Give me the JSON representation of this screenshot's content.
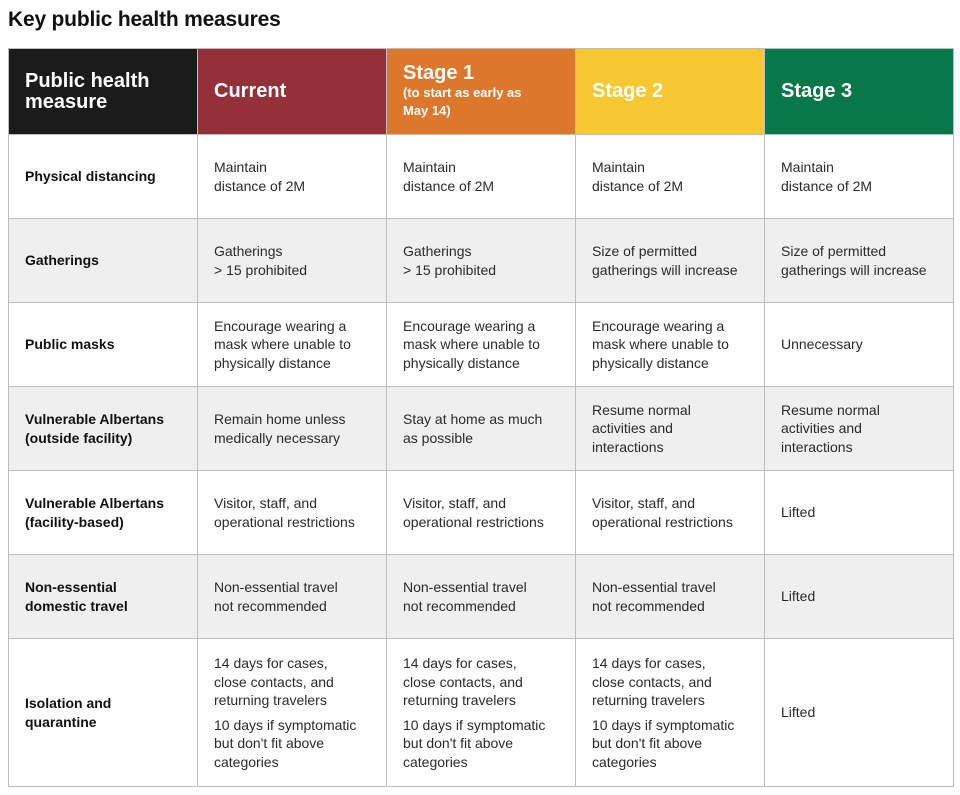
{
  "title": "Key public health measures",
  "header": {
    "measure": [
      "Public health",
      "measure"
    ],
    "current": "Current",
    "stage1": "Stage 1",
    "stage1_note": [
      "(to start as early as",
      "May 14)"
    ],
    "stage2": "Stage 2",
    "stage3": "Stage 3"
  },
  "colors": {
    "measure_header": "#1c1b1b",
    "current": "#93303a",
    "stage1": "#dd772b",
    "stage2": "#f7c832",
    "stage3": "#087849"
  },
  "rows": [
    {
      "label": [
        "Physical distancing"
      ],
      "current": [
        [
          "Maintain",
          "distance of 2M"
        ]
      ],
      "stage1": [
        [
          "Maintain",
          "distance of 2M"
        ]
      ],
      "stage2": [
        [
          "Maintain",
          "distance of 2M"
        ]
      ],
      "stage3": [
        [
          "Maintain",
          "distance of 2M"
        ]
      ]
    },
    {
      "label": [
        "Gatherings"
      ],
      "current": [
        [
          "Gatherings",
          "> 15 prohibited"
        ]
      ],
      "stage1": [
        [
          "Gatherings",
          "> 15 prohibited"
        ]
      ],
      "stage2": [
        [
          "Size of permitted",
          "gatherings will increase"
        ]
      ],
      "stage3": [
        [
          "Size of permitted",
          "gatherings will increase"
        ]
      ]
    },
    {
      "label": [
        "Public masks"
      ],
      "current": [
        [
          "Encourage wearing a",
          "mask where unable to",
          "physically distance"
        ]
      ],
      "stage1": [
        [
          "Encourage wearing a",
          "mask where unable to",
          "physically distance"
        ]
      ],
      "stage2": [
        [
          "Encourage wearing a",
          "mask where unable to",
          "physically distance"
        ]
      ],
      "stage3": [
        [
          "Unnecessary"
        ]
      ]
    },
    {
      "label": [
        "Vulnerable Albertans",
        "(outside facility)"
      ],
      "current": [
        [
          "Remain home unless",
          "medically necessary"
        ]
      ],
      "stage1": [
        [
          "Stay at home as much",
          "as possible"
        ]
      ],
      "stage2": [
        [
          "Resume normal",
          "activities and",
          "interactions"
        ]
      ],
      "stage3": [
        [
          "Resume normal",
          "activities and",
          "interactions"
        ]
      ]
    },
    {
      "label": [
        "Vulnerable Albertans",
        "(facility-based)"
      ],
      "current": [
        [
          "Visitor, staff, and",
          "operational restrictions"
        ]
      ],
      "stage1": [
        [
          "Visitor, staff, and",
          "operational restrictions"
        ]
      ],
      "stage2": [
        [
          "Visitor, staff, and",
          "operational restrictions"
        ]
      ],
      "stage3": [
        [
          "Lifted"
        ]
      ]
    },
    {
      "label": [
        "Non-essential",
        "domestic travel"
      ],
      "current": [
        [
          "Non-essential travel",
          "not recommended"
        ]
      ],
      "stage1": [
        [
          "Non-essential travel",
          "not recommended"
        ]
      ],
      "stage2": [
        [
          "Non-essential travel",
          "not recommended"
        ]
      ],
      "stage3": [
        [
          "Lifted"
        ]
      ]
    },
    {
      "label": [
        "Isolation and",
        "quarantine"
      ],
      "current": [
        [
          "14 days for cases,",
          "close contacts, and",
          "returning travelers"
        ],
        [
          "10 days if symptomatic",
          "but don't fit above",
          "categories"
        ]
      ],
      "stage1": [
        [
          "14 days for cases,",
          "close contacts, and",
          "returning travelers"
        ],
        [
          "10 days if symptomatic",
          "but don't fit above",
          "categories"
        ]
      ],
      "stage2": [
        [
          "14 days for cases,",
          "close contacts, and",
          "returning travelers"
        ],
        [
          "10 days if symptomatic",
          "but don't fit above",
          "categories"
        ]
      ],
      "stage3": [
        [
          "Lifted"
        ]
      ]
    }
  ]
}
